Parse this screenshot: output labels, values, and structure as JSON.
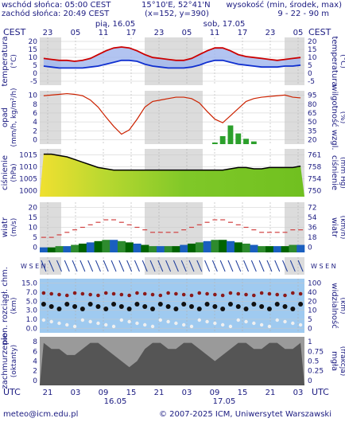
{
  "header": {
    "sunrise": "wschód słońca: 05:00 CEST",
    "sunset": "zachód słońca: 20:49 CEST",
    "coords": "15°10'E, 52°41'N",
    "grid": "(x=152, y=390)",
    "height_label": "wysokość (min, środek, max)",
    "height_values": "9 - 22 - 90 m"
  },
  "top_axis": {
    "zone_left": "CEST",
    "zone_right": "CEST",
    "hours": [
      "23",
      "05",
      "11",
      "17",
      "23",
      "05",
      "11",
      "17",
      "23",
      "05"
    ],
    "day1": "pią, 16.05",
    "day2": "sob, 17.05"
  },
  "bottom_axis": {
    "zone_left": "UTC",
    "zone_right": "UTC",
    "hours": [
      "21",
      "03",
      "09",
      "15",
      "21",
      "03",
      "09",
      "15",
      "21",
      "03"
    ],
    "day1": "16.05",
    "day2": "17.05"
  },
  "panels": {
    "temp": {
      "left_label": "temperatura",
      "left_unit": "(°C)",
      "right_label": "temperatura",
      "right_unit": "(°C)",
      "ticks": [
        "20",
        "15",
        "10",
        "5",
        "0",
        "-5"
      ],
      "ticks_right": [
        "20",
        "15",
        "10",
        "5",
        "0",
        "-5"
      ]
    },
    "precip": {
      "left_label": "opad",
      "left_unit": "(mm/h, kg/m²/h)",
      "right_label": "wilgotność wzgl.",
      "right_unit": "(%)",
      "ticks": [
        "10",
        "8",
        "6",
        "4",
        "2",
        "0"
      ],
      "ticks_right": [
        "95",
        "80",
        "65",
        "50",
        "35",
        "20"
      ]
    },
    "pressure": {
      "left_label": "ciśnienie",
      "left_unit": "(hPa)",
      "right_label": "ciśnienie",
      "right_unit": "(mm Hg)",
      "ticks": [
        "1015",
        "1010",
        "1005",
        "1000"
      ],
      "ticks_right": [
        "761",
        "758",
        "754",
        "750"
      ]
    },
    "wind": {
      "left_label": "wiatr",
      "left_unit": "(m/s)",
      "right_label": "wiatr",
      "right_unit": "(km/h)",
      "ticks": [
        "20",
        "15",
        "10",
        "5",
        "0"
      ],
      "ticks_right": [
        "72",
        "54",
        "36",
        "18",
        "0"
      ]
    },
    "dir": {
      "compass": "W S E N",
      "compass_right": "W S E N"
    },
    "vis": {
      "left_label": "pion. rozciągł. chm.",
      "left_unit": "(km)",
      "right_label": "widzialność",
      "right_unit": "(km)",
      "ticks": [
        "15.0",
        "7.0",
        "5.0",
        "3.0",
        "1.0",
        "0.0"
      ],
      "ticks_right": [
        "100",
        "40",
        "20",
        "10",
        "5",
        "0"
      ]
    },
    "cloud": {
      "left_label": "zachmurzenie",
      "left_unit": "(oktanty)",
      "right_label": "mgła",
      "right_unit": "(frakcja)",
      "ticks": [
        "8",
        "6",
        "4",
        "2",
        "0"
      ],
      "ticks_right": [
        "1",
        "0.75",
        "0.5",
        "0.25",
        "0"
      ]
    }
  },
  "footer": {
    "email": "meteo@icm.edu.pl",
    "copyright": "© 2007-2025 ICM, Uniwersytet Warszawski"
  },
  "colors": {
    "night": "#dcdcdc",
    "day": "#ffffff",
    "temp_red": "#cc0000",
    "dew_blue": "#1030d0",
    "temp_fill": "#9fb5ee",
    "precip_green": "#2ca02c",
    "humidity_red": "#cc2200",
    "wind_green_dark": "#006400",
    "wind_green": "#2e8b2e",
    "wind_blue": "#1a5fbf",
    "vis_bg": "#9fcaf0",
    "vis_orange": "#e08000",
    "cloud_grey": "#555555"
  },
  "chart_data": [
    {
      "type": "line",
      "title": "temperatura",
      "ylim": [
        -5,
        20
      ],
      "series": [
        {
          "values": [
            9,
            8.5,
            8,
            8,
            7.5,
            8,
            9,
            11,
            13,
            14.5,
            15,
            14.5,
            13,
            11,
            9.5,
            9,
            8.5,
            8,
            8,
            9,
            11,
            13,
            14.5,
            14.5,
            13,
            11,
            10,
            9.5,
            9,
            8.5,
            8,
            8.5,
            9,
            9.5
          ]
        },
        {
          "values": [
            5,
            4.5,
            4,
            4,
            4,
            4,
            4.5,
            5,
            6,
            7,
            8,
            8,
            7.5,
            6,
            5,
            4.5,
            4,
            4,
            4,
            4.5,
            5.5,
            7,
            8,
            8,
            7,
            6,
            5.5,
            5,
            4.5,
            4.5,
            4.5,
            5,
            5,
            5.5
          ]
        }
      ]
    },
    {
      "type": "bar",
      "title": "opad",
      "ylim": [
        0,
        10
      ],
      "values": [
        0,
        0,
        0,
        0,
        0,
        0,
        0,
        0,
        0,
        0,
        0,
        0,
        0,
        0,
        0,
        0,
        0,
        0,
        0,
        0,
        0,
        0,
        0.3,
        1.5,
        3.5,
        2,
        1,
        0.5,
        0,
        0,
        0,
        0,
        0,
        0
      ],
      "humidity_pct": [
        88,
        89,
        90,
        91,
        90,
        88,
        82,
        72,
        58,
        45,
        34,
        40,
        55,
        72,
        80,
        82,
        84,
        86,
        86,
        84,
        78,
        66,
        55,
        50,
        60,
        70,
        80,
        84,
        86,
        87,
        88,
        89,
        86,
        85
      ]
    },
    {
      "type": "area",
      "title": "ciśnienie",
      "ylim": [
        1000,
        1018
      ],
      "values": [
        1016,
        1016,
        1015.5,
        1015,
        1014,
        1013,
        1012,
        1011,
        1010.5,
        1010,
        1010,
        1010,
        1010,
        1010,
        1010,
        1010,
        1010,
        1010,
        1010,
        1010,
        1010,
        1010,
        1010,
        1010,
        1010.5,
        1011,
        1011,
        1010.5,
        1010.5,
        1011,
        1011,
        1011,
        1011,
        1011.5
      ]
    },
    {
      "type": "area",
      "title": "wiatr",
      "ylim": [
        0,
        20
      ],
      "values": [
        2,
        2,
        2.5,
        2.5,
        3,
        3.5,
        4,
        4.5,
        5,
        5,
        4.5,
        4,
        3.5,
        3,
        2.5,
        2.5,
        2.5,
        2.5,
        3,
        3.5,
        4,
        4.5,
        5,
        5,
        4.5,
        4,
        3.5,
        3,
        2.5,
        2.5,
        2.5,
        2.5,
        3,
        3
      ],
      "gusts": [
        6,
        6,
        7,
        8,
        9,
        10,
        11,
        12,
        13,
        13,
        12,
        11,
        10,
        9,
        8,
        8,
        8,
        8,
        9,
        10,
        11,
        12,
        13,
        13,
        12,
        11,
        10,
        9,
        8,
        8,
        8,
        8,
        9,
        9
      ]
    },
    {
      "type": "area",
      "title": "zachmurzenie",
      "ylim": [
        0,
        8
      ],
      "values": [
        7,
        6,
        6,
        5,
        5,
        6,
        7,
        7,
        6,
        5,
        4,
        3,
        4,
        6,
        7,
        7,
        6,
        6,
        7,
        7,
        6,
        5,
        4,
        5,
        6,
        7,
        7,
        6,
        6,
        7,
        7,
        6,
        6,
        7
      ]
    }
  ]
}
